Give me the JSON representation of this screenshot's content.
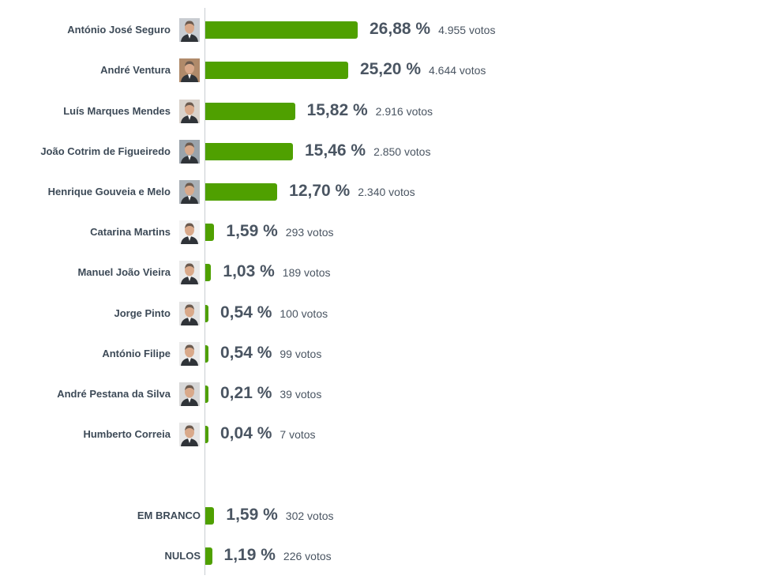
{
  "chart_data": {
    "type": "bar",
    "orientation": "horizontal",
    "bar_color": "#4fa000",
    "categories": [
      "António José Seguro",
      "André Ventura",
      "Luís Marques Mendes",
      "João Cotrim de Figueiredo",
      "Henrique Gouveia e Melo",
      "Catarina Martins",
      "Manuel João Vieira",
      "Jorge Pinto",
      "António Filipe",
      "André Pestana da Silva",
      "Humberto Correia",
      "EM BRANCO",
      "NULOS"
    ],
    "values": [
      26.88,
      25.2,
      15.82,
      15.46,
      12.7,
      1.59,
      1.03,
      0.54,
      0.54,
      0.21,
      0.04,
      1.59,
      1.19
    ],
    "rows": [
      {
        "name": "António José Seguro",
        "percent": "26,88 %",
        "votes": "4.955 votos",
        "value": 26.88,
        "photo": true,
        "photo_bg": "#c8ccd1"
      },
      {
        "name": "André Ventura",
        "percent": "25,20 %",
        "votes": "4.644 votos",
        "value": 25.2,
        "photo": true,
        "photo_bg": "#b08a6a"
      },
      {
        "name": "Luís Marques Mendes",
        "percent": "15,82 %",
        "votes": "2.916 votos",
        "value": 15.82,
        "photo": true,
        "photo_bg": "#d9d2cb"
      },
      {
        "name": "João Cotrim de Figueiredo",
        "percent": "15,46 %",
        "votes": "2.850 votos",
        "value": 15.46,
        "photo": true,
        "photo_bg": "#9aa3ab"
      },
      {
        "name": "Henrique Gouveia e Melo",
        "percent": "12,70 %",
        "votes": "2.340 votos",
        "value": 12.7,
        "photo": true,
        "photo_bg": "#a9b0b6"
      },
      {
        "name": "Catarina Martins",
        "percent": "1,59 %",
        "votes": "293 votos",
        "value": 1.59,
        "photo": true,
        "photo_bg": "#f2f2f2"
      },
      {
        "name": "Manuel João Vieira",
        "percent": "1,03 %",
        "votes": "189 votos",
        "value": 1.03,
        "photo": true,
        "photo_bg": "#e9e9e9"
      },
      {
        "name": "Jorge Pinto",
        "percent": "0,54 %",
        "votes": "100 votos",
        "value": 0.54,
        "photo": true,
        "photo_bg": "#e2e2e2"
      },
      {
        "name": "António Filipe",
        "percent": "0,54 %",
        "votes": "99 votos",
        "value": 0.54,
        "photo": true,
        "photo_bg": "#eaeaea"
      },
      {
        "name": "André Pestana da Silva",
        "percent": "0,21 %",
        "votes": "39 votos",
        "value": 0.21,
        "photo": true,
        "photo_bg": "#d7d7d7"
      },
      {
        "name": "Humberto Correia",
        "percent": "0,04 %",
        "votes": "7 votos",
        "value": 0.04,
        "photo": true,
        "photo_bg": "#e6e6e6"
      },
      {
        "name": "EM BRANCO",
        "percent": "1,59 %",
        "votes": "302 votos",
        "value": 1.59,
        "photo": false
      },
      {
        "name": "NULOS",
        "percent": "1,19 %",
        "votes": "226 votos",
        "value": 1.19,
        "photo": false
      }
    ],
    "xlim": [
      0,
      26.88
    ],
    "grid": false,
    "legend": "none"
  }
}
